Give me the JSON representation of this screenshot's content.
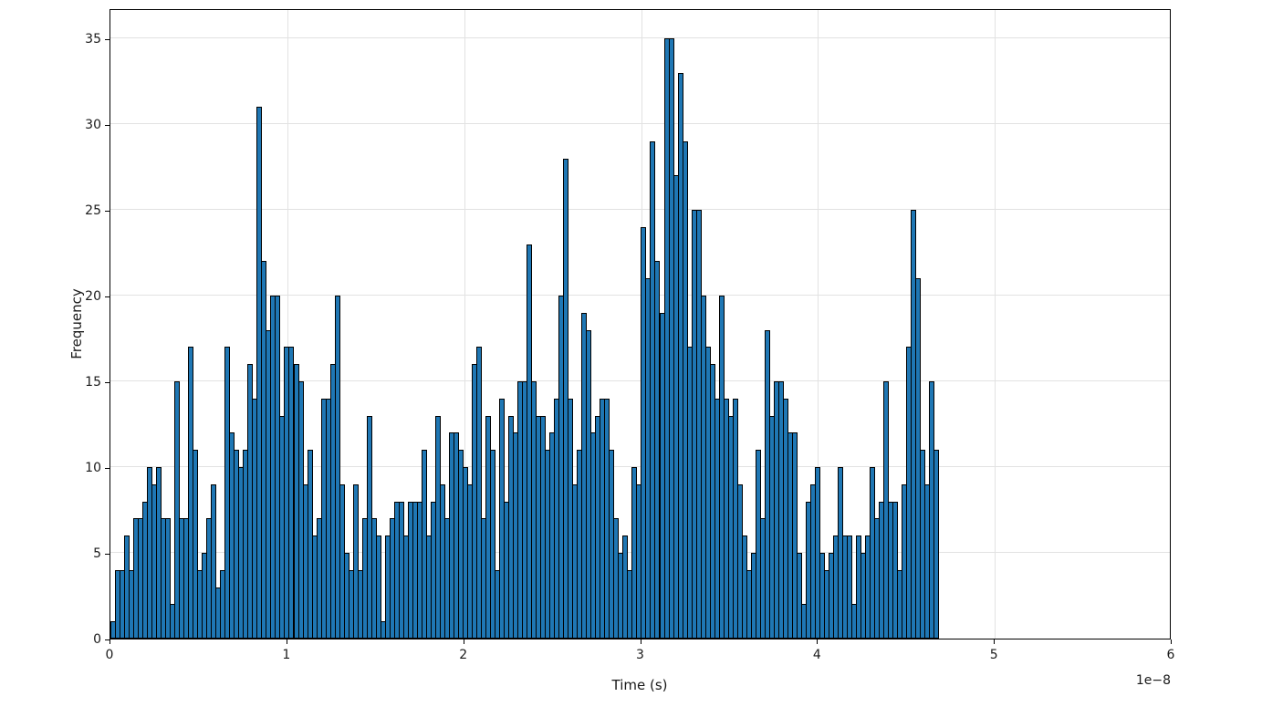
{
  "figure": {
    "background": "#ffffff"
  },
  "chart_data": {
    "type": "bar",
    "subtype": "histogram",
    "title": "",
    "xlabel": "Time (s)",
    "ylabel": "Frequency",
    "x_offset_label": "1e−8",
    "x_unit_multiplier": "1e-8",
    "xlim": [
      0,
      6
    ],
    "ylim": [
      0,
      36.75
    ],
    "grid": true,
    "grid_color": "#e2e2e2",
    "bar_color": "#1f77b4",
    "bar_edge_color": "#000000",
    "x_tick_values": [
      0,
      1,
      2,
      3,
      4,
      5,
      6
    ],
    "x_tick_labels": [
      "0",
      "1",
      "2",
      "3",
      "4",
      "5",
      "6"
    ],
    "y_tick_values": [
      0,
      5,
      10,
      15,
      20,
      25,
      30,
      35
    ],
    "y_tick_labels": [
      "0",
      "5",
      "10",
      "15",
      "20",
      "25",
      "30",
      "35"
    ],
    "bin_start": 0,
    "bin_width": 0.02586,
    "values": [
      1,
      4,
      4,
      6,
      4,
      7,
      7,
      8,
      10,
      9,
      10,
      7,
      7,
      2,
      15,
      7,
      7,
      17,
      11,
      4,
      5,
      7,
      9,
      3,
      4,
      17,
      12,
      11,
      10,
      11,
      16,
      14,
      31,
      22,
      18,
      20,
      20,
      13,
      17,
      17,
      16,
      15,
      9,
      11,
      6,
      7,
      14,
      14,
      16,
      20,
      9,
      5,
      4,
      9,
      4,
      7,
      13,
      7,
      6,
      1,
      6,
      7,
      8,
      8,
      6,
      8,
      8,
      8,
      11,
      6,
      8,
      13,
      9,
      7,
      12,
      12,
      11,
      10,
      9,
      16,
      17,
      7,
      13,
      11,
      4,
      14,
      8,
      13,
      12,
      15,
      15,
      23,
      15,
      13,
      13,
      11,
      12,
      14,
      20,
      28,
      14,
      9,
      11,
      19,
      18,
      12,
      13,
      14,
      14,
      11,
      7,
      5,
      6,
      4,
      10,
      9,
      24,
      21,
      29,
      22,
      19,
      35,
      35,
      27,
      33,
      29,
      17,
      25,
      25,
      20,
      17,
      16,
      14,
      20,
      14,
      13,
      14,
      9,
      6,
      4,
      5,
      11,
      7,
      18,
      13,
      15,
      15,
      14,
      12,
      12,
      5,
      2,
      8,
      9,
      10,
      5,
      4,
      5,
      6,
      10,
      6,
      6,
      2,
      6,
      5,
      6,
      10,
      7,
      8,
      15,
      8,
      8,
      4,
      9,
      17,
      25,
      21,
      11,
      9,
      15,
      11
    ]
  }
}
